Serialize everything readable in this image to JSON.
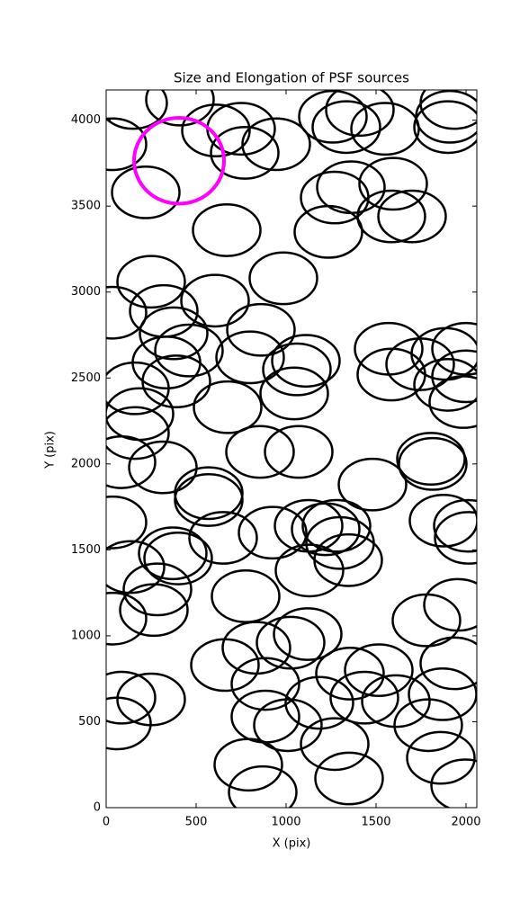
{
  "chart_data": {
    "type": "ellipse",
    "title": "Size and Elongation of PSF sources",
    "x_label": "X (pix)",
    "y_label": "Y (pix)",
    "xlim": [
      0,
      2060
    ],
    "ylim": [
      0,
      4176
    ],
    "xticks": [
      0,
      500,
      1000,
      1500,
      2000
    ],
    "yticks": [
      0,
      500,
      1000,
      1500,
      2000,
      2500,
      3000,
      3500,
      4000
    ],
    "series": [
      {
        "color": "#000000",
        "linewidth": 2.5,
        "width": 375,
        "height": 300,
        "x": [
          150,
          410,
          35,
          220,
          610,
          750,
          770,
          945,
          1260,
          1335,
          1410,
          1550,
          1910,
          1935,
          1900,
          1360,
          1270,
          1595,
          1585,
          1700,
          1235,
          670,
          985,
          250,
          320,
          35,
          605,
          375,
          460,
          860,
          800,
          1110,
          1060,
          1045,
          335,
          390,
          160,
          185,
          160,
          675,
          1570,
          1585,
          1745,
          1885,
          2000,
          1900,
          2000,
          1985,
          855,
          1070,
          85,
          315,
          570,
          570,
          1480,
          1805,
          1815,
          35,
          135,
          370,
          400,
          650,
          925,
          1125,
          1220,
          1280,
          1300,
          1345,
          1130,
          1875,
          2010,
          2015,
          285,
          265,
          35,
          775,
          1780,
          1955,
          1120,
          1025,
          835,
          660,
          885,
          1935,
          85,
          250,
          1355,
          1515,
          1185,
          1435,
          1610,
          1870,
          885,
          1010,
          1790,
          1860,
          1270,
          1350,
          790,
          870,
          60,
          1995
        ],
        "y": [
          4100,
          4120,
          3860,
          3580,
          3940,
          3950,
          3810,
          3860,
          4020,
          3960,
          4060,
          3950,
          4020,
          4100,
          3960,
          3610,
          3550,
          3630,
          3440,
          3440,
          3350,
          3360,
          3080,
          3060,
          2890,
          2880,
          2950,
          2760,
          2660,
          2780,
          2620,
          2600,
          2550,
          2410,
          2590,
          2480,
          2440,
          2290,
          2180,
          2330,
          2670,
          2520,
          2580,
          2640,
          2670,
          2460,
          2510,
          2360,
          2070,
          2070,
          2010,
          1980,
          1830,
          1790,
          1880,
          2030,
          2000,
          1660,
          1400,
          1480,
          1450,
          1570,
          1600,
          1640,
          1620,
          1640,
          1540,
          1440,
          1380,
          1670,
          1640,
          1570,
          1270,
          1150,
          1100,
          1230,
          1090,
          1180,
          1010,
          960,
          930,
          830,
          720,
          840,
          640,
          630,
          780,
          800,
          610,
          640,
          620,
          660,
          530,
          480,
          480,
          290,
          370,
          170,
          250,
          90,
          490,
          130
        ]
      },
      {
        "color": "#ff00ff",
        "linewidth": 4,
        "width": 500,
        "height": 500,
        "x": [
          405
        ],
        "y": [
          3764
        ]
      }
    ]
  }
}
